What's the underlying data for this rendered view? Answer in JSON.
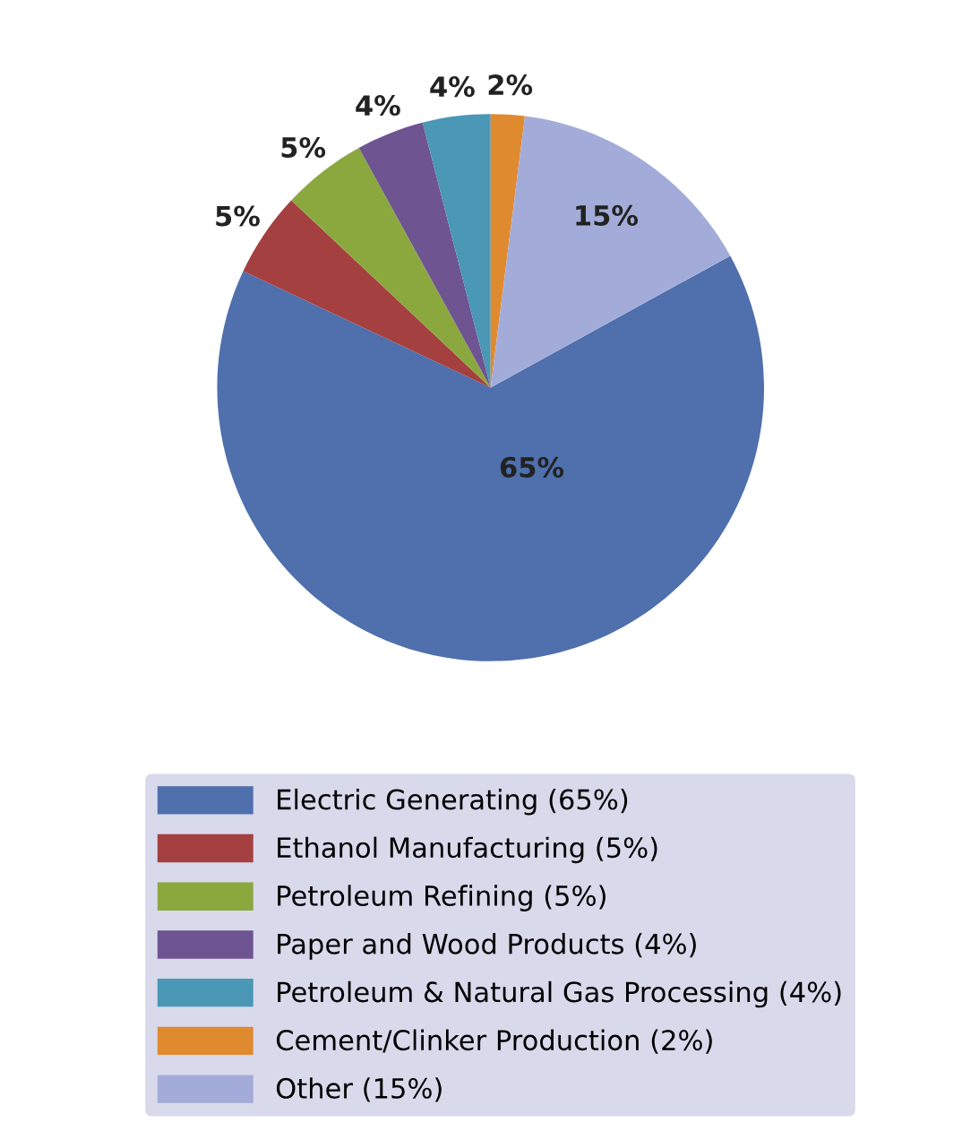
{
  "chart_data": {
    "type": "pie",
    "categories": [
      "Electric Generating (65%)",
      "Ethanol Manufacturing (5%)",
      "Petroleum Refining (5%)",
      "Paper and Wood Products (4%)",
      "Petroleum & Natural Gas Processing (4%)",
      "Cement/Clinker Production (2%)",
      "Other (15%)"
    ],
    "values": [
      65,
      5,
      5,
      4,
      4,
      2,
      15
    ],
    "colors": [
      "#4f6fad",
      "#a54040",
      "#8ba83f",
      "#6e5490",
      "#4a97b6",
      "#e08a30",
      "#a3acd8"
    ],
    "value_labels": [
      "65%",
      "5%",
      "5%",
      "4%",
      "4%",
      "2%",
      "15%"
    ],
    "legend": "bottom"
  }
}
